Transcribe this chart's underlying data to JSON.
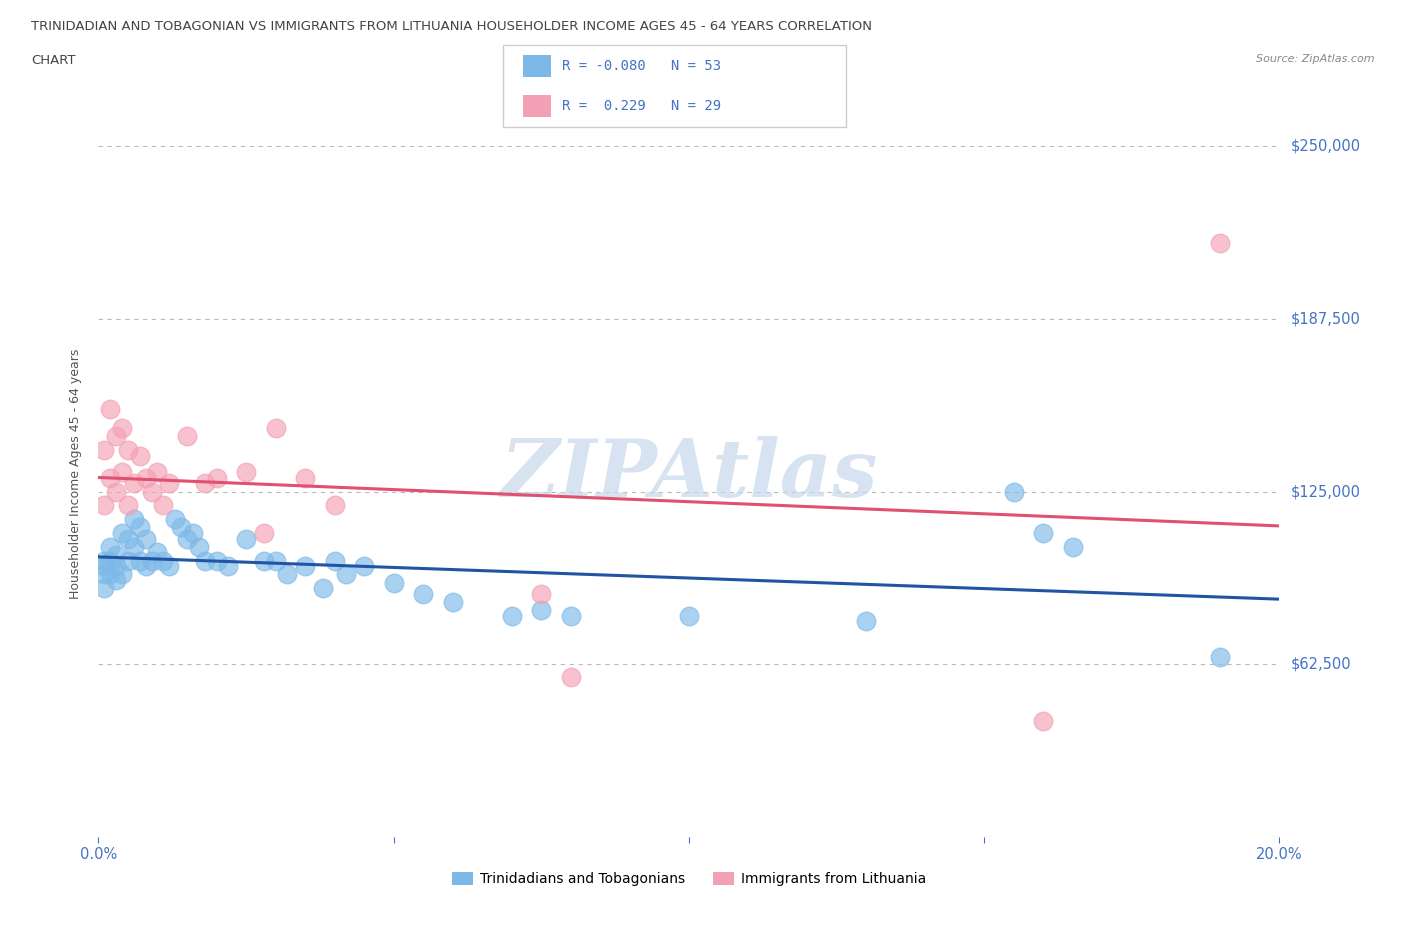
{
  "title_line1": "TRINIDADIAN AND TOBAGONIAN VS IMMIGRANTS FROM LITHUANIA HOUSEHOLDER INCOME AGES 45 - 64 YEARS CORRELATION",
  "title_line2": "CHART",
  "source": "Source: ZipAtlas.com",
  "ylabel": "Householder Income Ages 45 - 64 years",
  "xlim": [
    0,
    0.2
  ],
  "ylim": [
    0,
    262500
  ],
  "yticks": [
    0,
    62500,
    125000,
    187500,
    250000
  ],
  "ytick_labels": [
    "",
    "$62,500",
    "$125,000",
    "$187,500",
    "$250,000"
  ],
  "xticks": [
    0.0,
    0.05,
    0.1,
    0.15,
    0.2
  ],
  "xtick_labels": [
    "0.0%",
    "",
    "",
    "",
    "20.0%"
  ],
  "watermark": "ZIPAtlas",
  "blue_R": -0.08,
  "blue_N": 53,
  "pink_R": 0.229,
  "pink_N": 29,
  "blue_color": "#7db9e8",
  "pink_color": "#f4a0b4",
  "blue_line_color": "#2155a3",
  "pink_line_color": "#e05070",
  "title_color": "#444444",
  "axis_label_color": "#555555",
  "tick_color": "#4472c4",
  "legend_R_color": "#4472c4",
  "grid_color": "#bbbbbb",
  "blue_x": [
    0.001,
    0.001,
    0.001,
    0.001,
    0.002,
    0.002,
    0.002,
    0.003,
    0.003,
    0.003,
    0.004,
    0.004,
    0.005,
    0.005,
    0.006,
    0.006,
    0.007,
    0.007,
    0.008,
    0.008,
    0.009,
    0.01,
    0.011,
    0.012,
    0.013,
    0.014,
    0.015,
    0.016,
    0.017,
    0.018,
    0.02,
    0.022,
    0.025,
    0.028,
    0.03,
    0.032,
    0.035,
    0.038,
    0.04,
    0.042,
    0.045,
    0.05,
    0.055,
    0.06,
    0.07,
    0.075,
    0.08,
    0.1,
    0.13,
    0.155,
    0.16,
    0.165,
    0.19
  ],
  "blue_y": [
    100000,
    98000,
    95000,
    90000,
    105000,
    100000,
    95000,
    102000,
    98000,
    93000,
    110000,
    95000,
    108000,
    100000,
    115000,
    105000,
    112000,
    100000,
    108000,
    98000,
    100000,
    103000,
    100000,
    98000,
    115000,
    112000,
    108000,
    110000,
    105000,
    100000,
    100000,
    98000,
    108000,
    100000,
    100000,
    95000,
    98000,
    90000,
    100000,
    95000,
    98000,
    92000,
    88000,
    85000,
    80000,
    82000,
    80000,
    80000,
    78000,
    125000,
    110000,
    105000,
    65000
  ],
  "pink_x": [
    0.001,
    0.001,
    0.002,
    0.002,
    0.003,
    0.003,
    0.004,
    0.004,
    0.005,
    0.005,
    0.006,
    0.007,
    0.008,
    0.009,
    0.01,
    0.011,
    0.012,
    0.015,
    0.018,
    0.02,
    0.025,
    0.028,
    0.03,
    0.035,
    0.04,
    0.075,
    0.08,
    0.16,
    0.19
  ],
  "pink_y": [
    140000,
    120000,
    155000,
    130000,
    145000,
    125000,
    148000,
    132000,
    140000,
    120000,
    128000,
    138000,
    130000,
    125000,
    132000,
    120000,
    128000,
    145000,
    128000,
    130000,
    132000,
    110000,
    148000,
    130000,
    120000,
    88000,
    58000,
    42000,
    215000
  ]
}
